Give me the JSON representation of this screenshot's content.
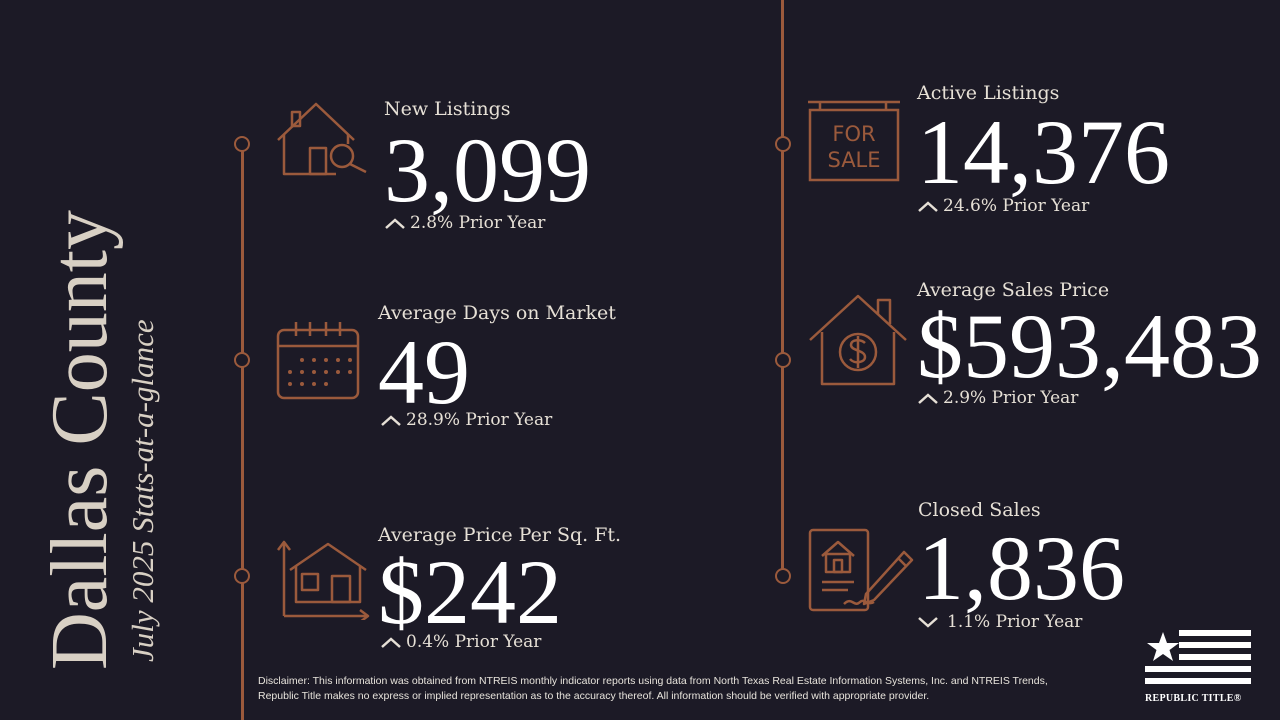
{
  "title": "Dallas County",
  "subtitle": "July 2025 Stats-at-a-glance",
  "colors": {
    "background": "#1c1a26",
    "accent": "#9b5a3c",
    "text": "#ffffff"
  },
  "stats": [
    {
      "label": "New Listings",
      "value": "3,099",
      "change": "2.8% Prior Year",
      "direction": "up",
      "icon": "house-search-icon"
    },
    {
      "label": "Average Days on Market",
      "value": "49",
      "change": "28.9% Prior Year",
      "direction": "up",
      "icon": "calendar-icon"
    },
    {
      "label": "Average Price Per Sq. Ft.",
      "value": "$242",
      "change": "0.4% Prior Year",
      "direction": "up",
      "icon": "house-dimensions-icon"
    },
    {
      "label": "Active Listings",
      "value": "14,376",
      "change": "24.6% Prior Year",
      "direction": "up",
      "icon": "for-sale-sign-icon"
    },
    {
      "label": "Average Sales Price",
      "value": "$593,483",
      "change": "2.9% Prior Year",
      "direction": "up",
      "icon": "house-dollar-icon"
    },
    {
      "label": "Closed Sales",
      "value": "1,836",
      "change": "1.1% Prior Year",
      "direction": "down",
      "icon": "contract-signing-icon"
    }
  ],
  "for_sale_sign": {
    "line1": "FOR",
    "line2": "SALE"
  },
  "disclaimer": "Disclaimer: This information was obtained from NTREIS monthly indicator reports using data from North Texas Real Estate Information Systems, Inc. and NTREIS Trends, Republic Title makes no express or implied representation as to the accuracy thereof. All information should be verified with appropriate provider.",
  "logo": {
    "text": "REPUBLIC TITLE®"
  }
}
